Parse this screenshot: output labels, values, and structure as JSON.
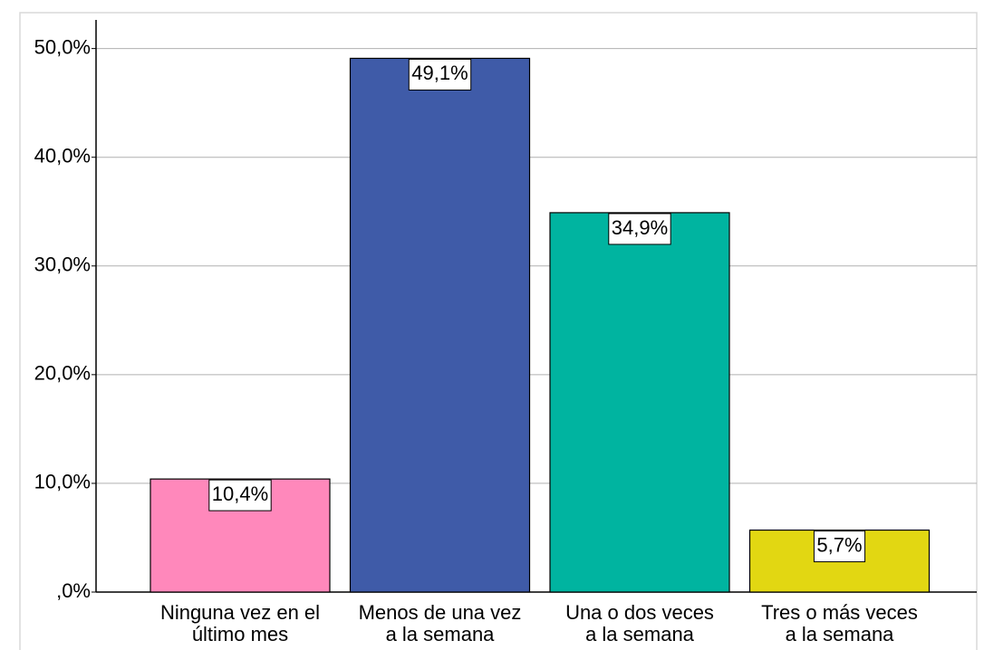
{
  "chart_data": {
    "type": "bar",
    "categories": [
      [
        "Ninguna vez en el",
        "último mes"
      ],
      [
        "Menos de una vez",
        "a la semana"
      ],
      [
        "Una o dos veces",
        "a la semana"
      ],
      [
        "Tres o más veces",
        "a la semana"
      ]
    ],
    "values": [
      10.4,
      49.1,
      34.9,
      5.7
    ],
    "value_labels": [
      "10,4%",
      "49,1%",
      "34,9%",
      "5,7%"
    ],
    "colors": [
      "#ff88bb",
      "#3f5ba8",
      "#00b4a0",
      "#e2d712"
    ],
    "ylim": [
      0,
      53.3
    ],
    "yticks": [
      {
        "value": 0,
        "label": ",0%"
      },
      {
        "value": 10,
        "label": "10,0%"
      },
      {
        "value": 20,
        "label": "20,0%"
      },
      {
        "value": 30,
        "label": "30,0%"
      },
      {
        "value": 40,
        "label": "40,0%"
      },
      {
        "value": 50,
        "label": "50,0%"
      }
    ],
    "grid": true
  }
}
